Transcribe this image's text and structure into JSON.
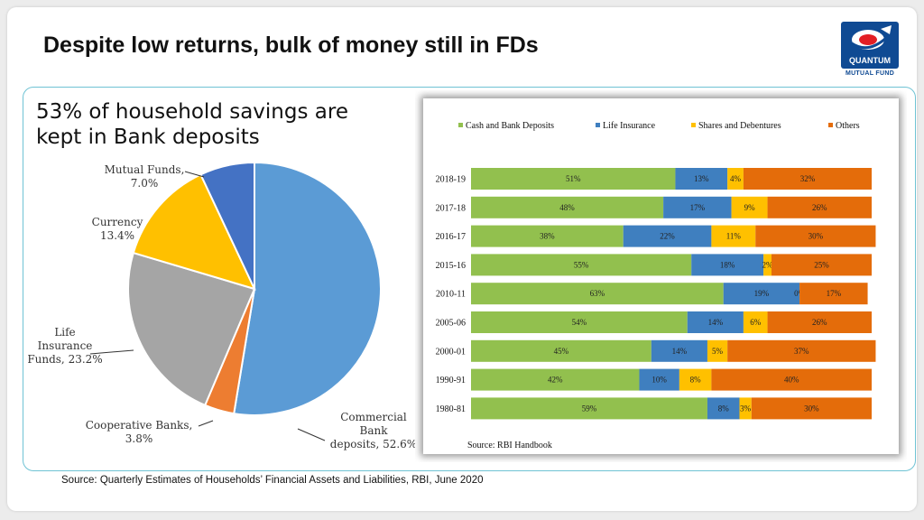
{
  "slide": {
    "title": "Despite low returns, bulk of money still in FDs",
    "headline_line1": "53% of household savings are",
    "headline_line2": "kept in Bank deposits",
    "source": "Source: Quarterly Estimates of Households’ Financial Assets and Liabilities, RBI, June 2020"
  },
  "logo": {
    "name": "QUANTUM",
    "sub": "MUTUAL FUND",
    "color": "#0f4a93"
  },
  "chart_data": [
    {
      "type": "pie",
      "slices": [
        {
          "name": "Commercial Bank deposits",
          "value": 52.6,
          "color": "#5b9bd5",
          "label_lines": [
            "Commercial",
            "Bank",
            "deposits, 52.6%"
          ]
        },
        {
          "name": "Cooperative Banks",
          "value": 3.8,
          "color": "#ed7d31",
          "label_lines": [
            "Cooperative Banks,",
            "3.8%"
          ]
        },
        {
          "name": "Life Insurance Funds",
          "value": 23.2,
          "color": "#a5a5a5",
          "label_lines": [
            "Life",
            "Insurance",
            "Funds, 23.2%"
          ]
        },
        {
          "name": "Currency",
          "value": 13.4,
          "color": "#ffc000",
          "label_lines": [
            "Currency",
            "13.4%"
          ]
        },
        {
          "name": "Mutual Funds",
          "value": 7.0,
          "color": "#4472c4",
          "label_lines": [
            "Mutual Funds,",
            "7.0%"
          ]
        }
      ]
    },
    {
      "type": "bar",
      "orientation": "horizontal",
      "stacked": true,
      "percent": true,
      "categories": [
        "2018-19",
        "2017-18",
        "2016-17",
        "2015-16",
        "2010-11",
        "2005-06",
        "2000-01",
        "1990-91",
        "1980-81"
      ],
      "series": [
        {
          "name": "Cash and Bank Deposits",
          "color": "#92c04e",
          "values": [
            51,
            48,
            38,
            55,
            63,
            54,
            45,
            42,
            59
          ]
        },
        {
          "name": "Life Insurance",
          "color": "#3f7fbf",
          "values": [
            13,
            17,
            22,
            18,
            19,
            14,
            14,
            10,
            8
          ]
        },
        {
          "name": "Shares and Debentures",
          "color": "#ffc000",
          "values": [
            4,
            9,
            11,
            2,
            0,
            6,
            5,
            8,
            3
          ]
        },
        {
          "name": "Others",
          "color": "#e46c0a",
          "values": [
            32,
            26,
            30,
            25,
            17,
            26,
            37,
            40,
            30
          ]
        }
      ],
      "legend_position": "top",
      "annotation": "Source: RBI Handbook"
    }
  ]
}
